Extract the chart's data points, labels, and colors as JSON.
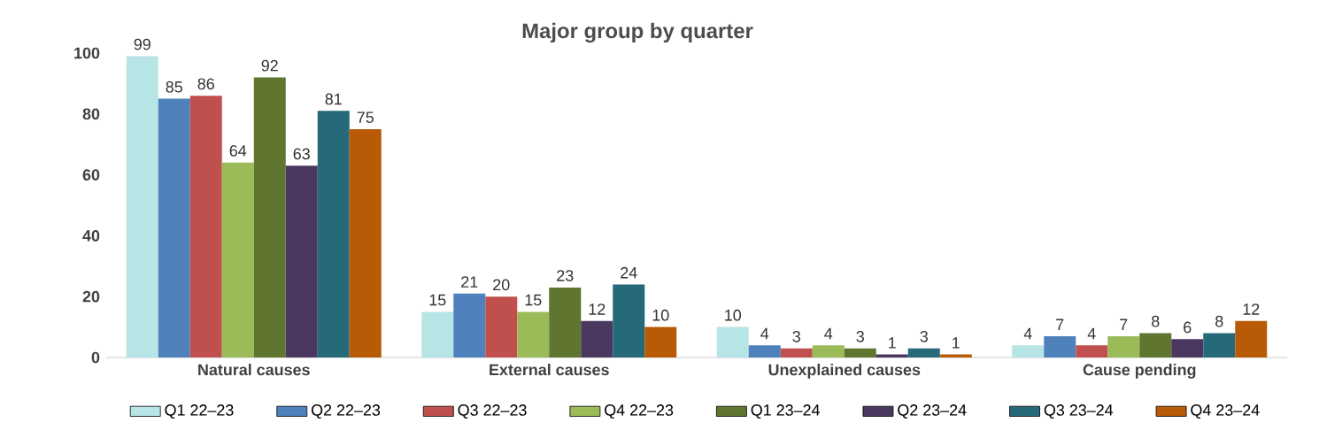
{
  "chart_data": {
    "type": "bar",
    "title": "Major group by quarter",
    "categories": [
      "Natural causes",
      "External causes",
      "Unexplained causes",
      "Cause pending"
    ],
    "series": [
      {
        "name": "Q1 22–23",
        "color": "#b7e4e4",
        "values": [
          99,
          15,
          10,
          4
        ]
      },
      {
        "name": "Q2 22–23",
        "color": "#4f81bd",
        "values": [
          85,
          21,
          4,
          7
        ]
      },
      {
        "name": "Q3 22–23",
        "color": "#c0504d",
        "values": [
          86,
          20,
          3,
          4
        ]
      },
      {
        "name": "Q4 22–23",
        "color": "#9bbb59",
        "values": [
          64,
          15,
          4,
          7
        ]
      },
      {
        "name": "Q1 23–24",
        "color": "#5f7530",
        "values": [
          92,
          23,
          3,
          8
        ]
      },
      {
        "name": "Q2 23–24",
        "color": "#4a3860",
        "values": [
          63,
          12,
          1,
          6
        ]
      },
      {
        "name": "Q3 23–24",
        "color": "#266a7a",
        "values": [
          81,
          24,
          3,
          8
        ]
      },
      {
        "name": "Q4 23–24",
        "color": "#b85a06",
        "values": [
          75,
          10,
          1,
          12
        ]
      }
    ],
    "ylim": [
      0,
      100
    ],
    "yticks": [
      0,
      20,
      40,
      60,
      80,
      100
    ],
    "data_labels": true,
    "grid": false,
    "legend": "bottom"
  }
}
